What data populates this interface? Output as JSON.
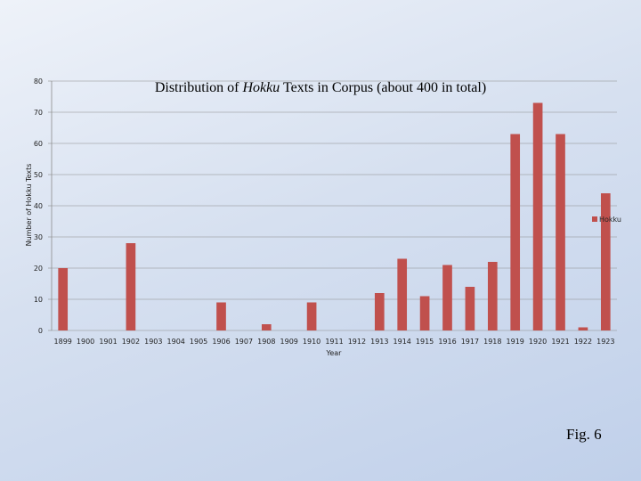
{
  "chart_data": {
    "type": "bar",
    "title_prefix": "Distribution of ",
    "title_italic": "Hokku",
    "title_suffix": " Texts in Corpus (about 400 in total)",
    "xlabel": "Year",
    "ylabel": "Number of Hokku Texts",
    "ylim": [
      0,
      80
    ],
    "yticks": [
      0,
      10,
      20,
      30,
      40,
      50,
      60,
      70,
      80
    ],
    "grid": true,
    "legend_position": "right",
    "categories": [
      "1899",
      "1900",
      "1901",
      "1902",
      "1903",
      "1904",
      "1905",
      "1906",
      "1907",
      "1908",
      "1909",
      "1910",
      "1911",
      "1912",
      "1913",
      "1914",
      "1915",
      "1916",
      "1917",
      "1918",
      "1919",
      "1920",
      "1921",
      "1922",
      "1923"
    ],
    "series": [
      {
        "name": "Hokku",
        "color": "#c0504d",
        "values": [
          20,
          0,
          0,
          28,
          0,
          0,
          0,
          9,
          0,
          2,
          0,
          9,
          0,
          0,
          12,
          23,
          11,
          21,
          14,
          22,
          63,
          73,
          63,
          1,
          44
        ]
      }
    ]
  },
  "figure_label": "Fig. 6"
}
